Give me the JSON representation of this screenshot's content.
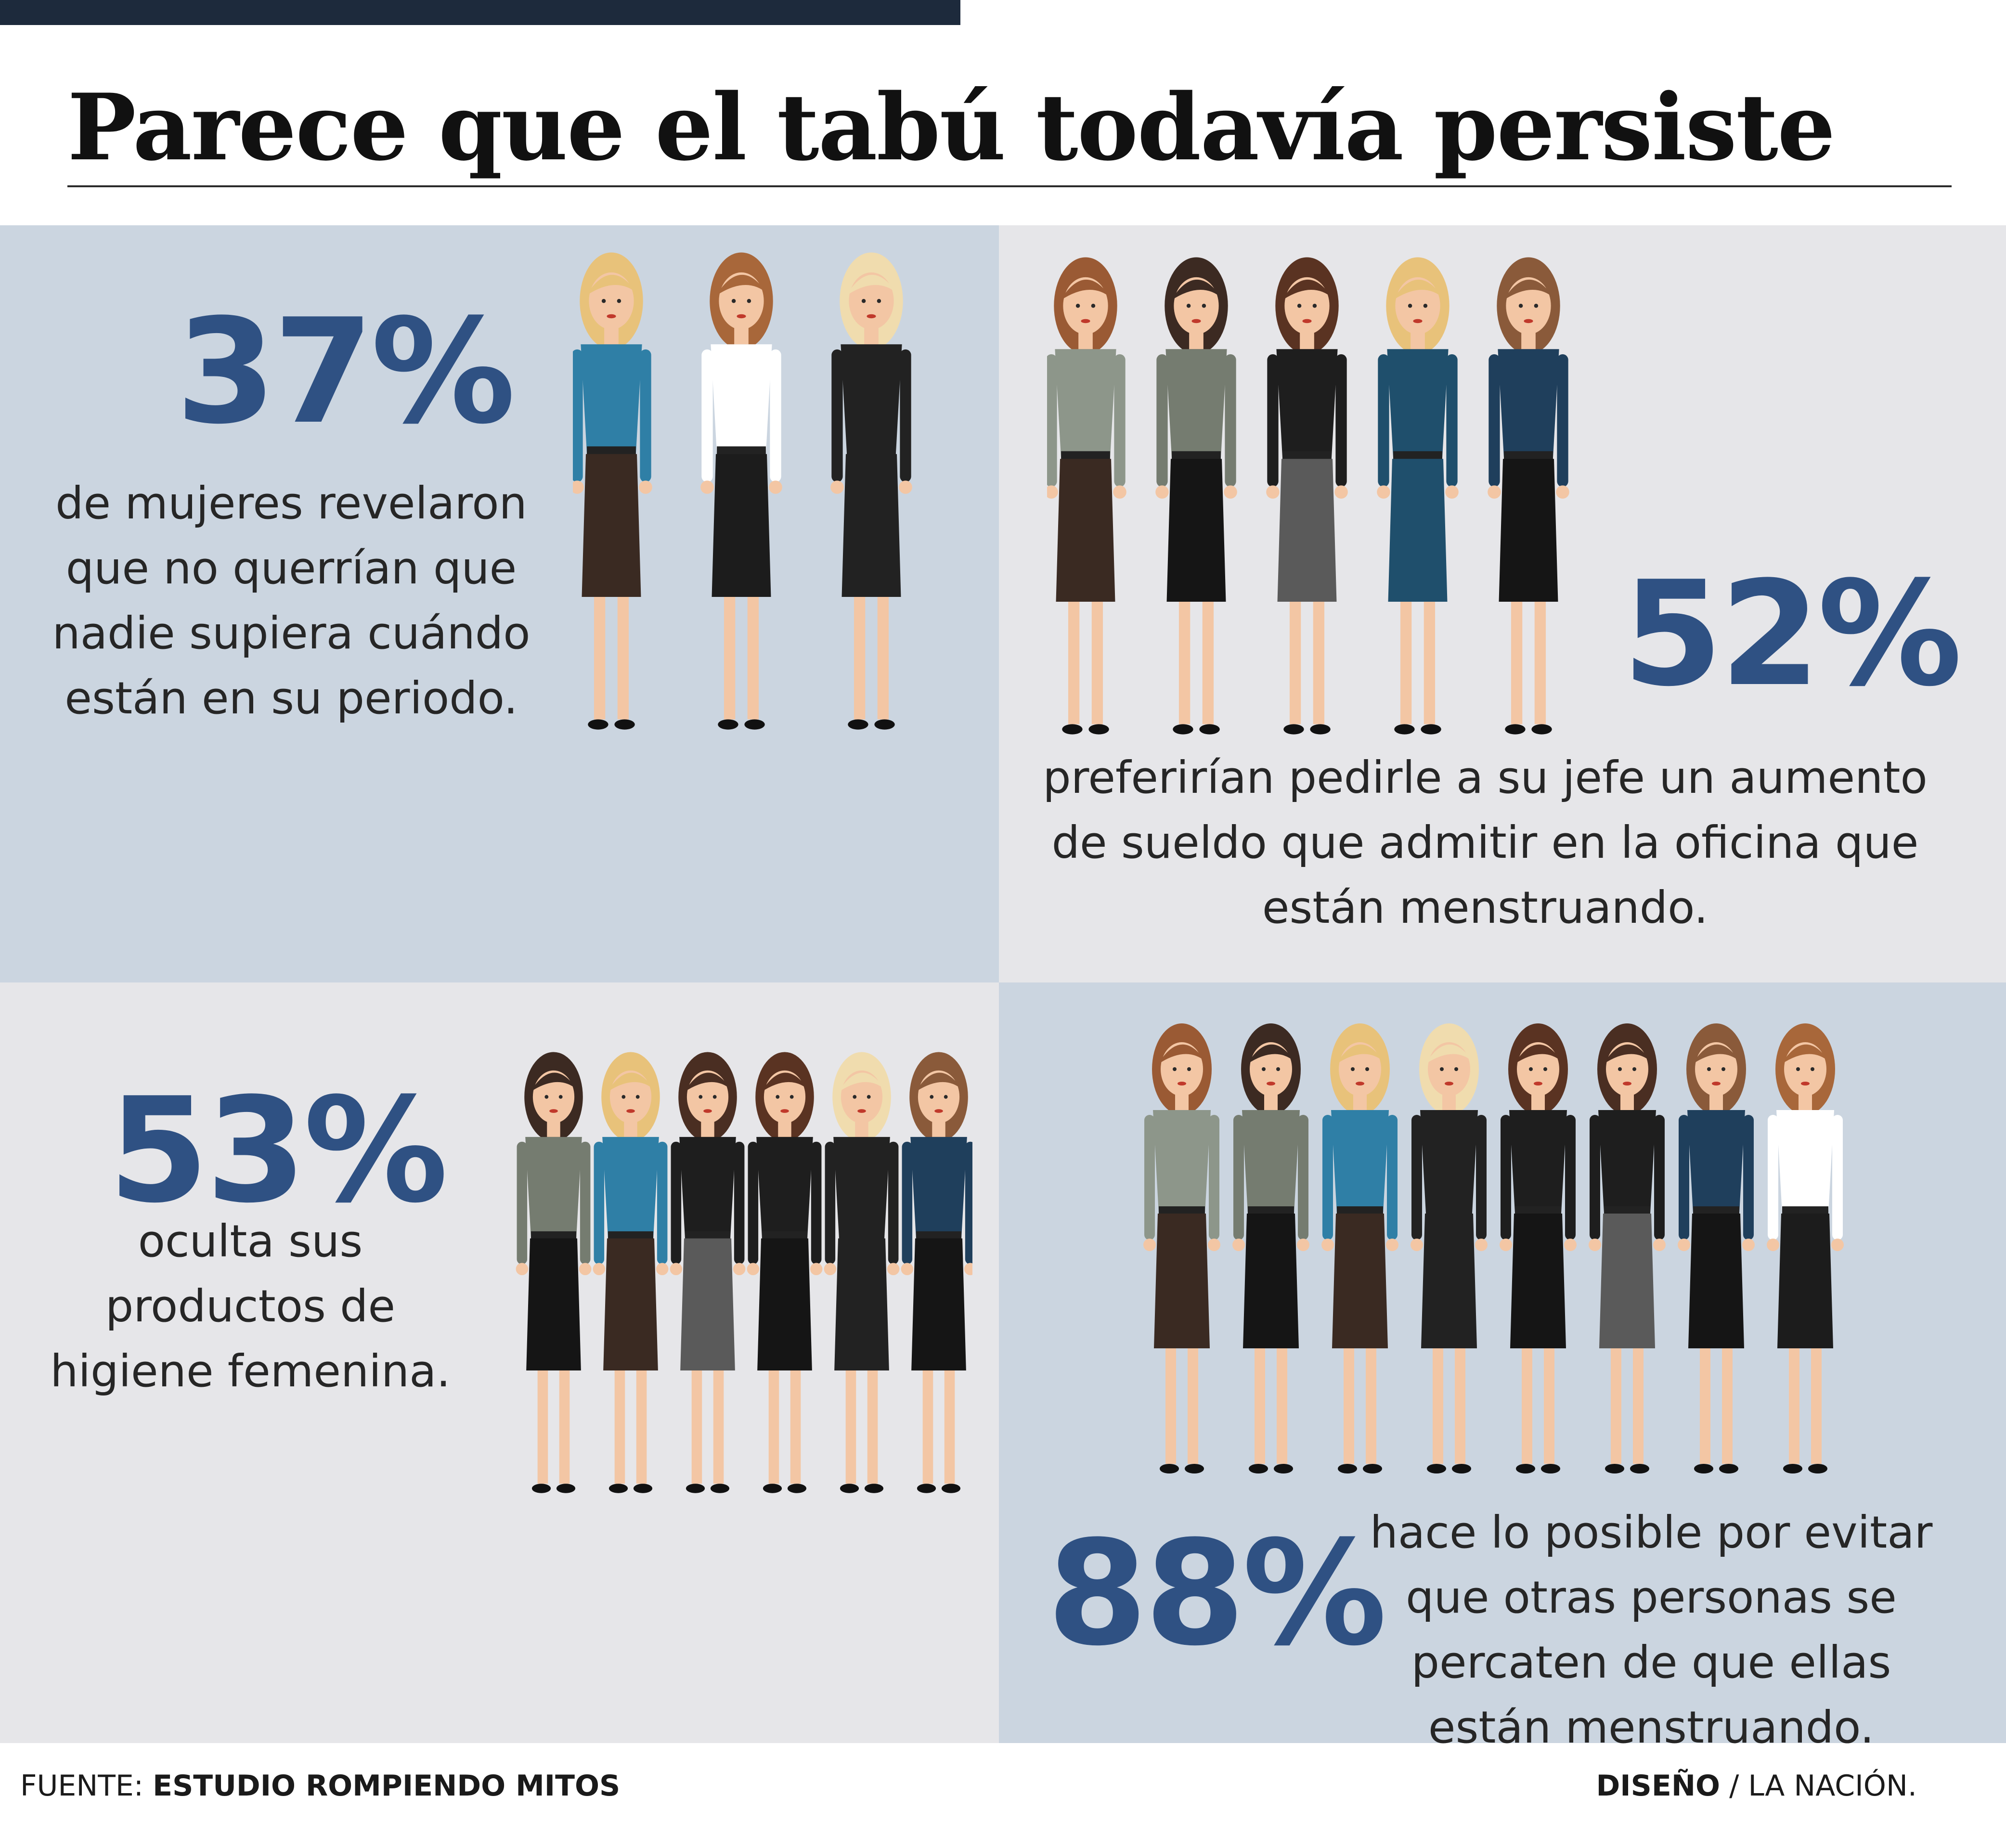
{
  "title": "Parece que el tabú todavía persiste",
  "stats": [
    {
      "value": "37%",
      "lines": [
        "de mujeres revelaron",
        "que no querrían que",
        "nadie supiera cuándo",
        "están en su periodo."
      ]
    },
    {
      "value": "52%",
      "lines": [
        "preferirían pedirle a su jefe un aumento",
        "de sueldo que admitir en la oficina que",
        "están menstruando."
      ]
    },
    {
      "value": "53%",
      "lines": [
        "oculta sus",
        "productos de",
        "higiene femenina."
      ]
    },
    {
      "value": "88%",
      "lines": [
        "hace lo posible por evitar",
        "que otras personas se",
        "percaten de que ellas",
        "están menstruando."
      ]
    }
  ],
  "footer": {
    "source_prefix": "FUENTE: ",
    "source": "ESTUDIO ROMPIENDO MITOS",
    "design_label": "DISEÑO",
    "design_sep": " / ",
    "design_credit": "LA NACIÓN."
  },
  "colors": {
    "accent": "#2f5183",
    "panel_blue": "#cbd5e0",
    "panel_grey": "#e6e6e9",
    "top_bar": "#1d2a3c"
  },
  "illustrations": {
    "group_a": [
      {
        "hair": "#e8c27a",
        "top": "#2f7fa6",
        "bottom": "#3a2a22",
        "skin": "#f3c6a4"
      },
      {
        "hair": "#a8673a",
        "top": "#ffffff",
        "bottom": "#1c1c1c",
        "skin": "#f3c6a4"
      },
      {
        "hair": "#f0dcae",
        "top": "#222222",
        "bottom": "#222222",
        "skin": "#f3c6a4"
      }
    ],
    "group_b": [
      {
        "hair": "#9a5a34",
        "top": "#8d968a",
        "bottom": "#3a2a22",
        "skin": "#f3c6a4"
      },
      {
        "hair": "#3c2a22",
        "top": "#757c70",
        "bottom": "#151515",
        "skin": "#f3c6a4"
      },
      {
        "hair": "#5a3322",
        "top": "#1e1e1e",
        "bottom": "#5a5a5a",
        "skin": "#f3c6a4"
      },
      {
        "hair": "#e8c27a",
        "top": "#1f4f6c",
        "bottom": "#1f4f6c",
        "skin": "#f3c6a4"
      },
      {
        "hair": "#8a5a3a",
        "top": "#1f3f5c",
        "bottom": "#151515",
        "skin": "#f3c6a4"
      }
    ],
    "group_c": [
      {
        "hair": "#3c2a22",
        "top": "#757c70",
        "bottom": "#151515",
        "skin": "#f3c6a4"
      },
      {
        "hair": "#e8c27a",
        "top": "#2f7fa6",
        "bottom": "#3a2a22",
        "skin": "#f3c6a4"
      },
      {
        "hair": "#4a2e22",
        "top": "#1e1e1e",
        "bottom": "#5a5a5a",
        "skin": "#f3c6a4"
      },
      {
        "hair": "#5a3322",
        "top": "#1e1e1e",
        "bottom": "#151515",
        "skin": "#f3c6a4"
      },
      {
        "hair": "#f0dcae",
        "top": "#222222",
        "bottom": "#222222",
        "skin": "#f3c6a4"
      },
      {
        "hair": "#8a5a3a",
        "top": "#1f3f5c",
        "bottom": "#151515",
        "skin": "#f3c6a4"
      }
    ],
    "group_d": [
      {
        "hair": "#9a5a34",
        "top": "#8d968a",
        "bottom": "#3a2a22",
        "skin": "#f3c6a4"
      },
      {
        "hair": "#3c2a22",
        "top": "#757c70",
        "bottom": "#151515",
        "skin": "#f3c6a4"
      },
      {
        "hair": "#e8c27a",
        "top": "#2f7fa6",
        "bottom": "#3a2a22",
        "skin": "#f3c6a4"
      },
      {
        "hair": "#f0dcae",
        "top": "#222222",
        "bottom": "#222222",
        "skin": "#f3c6a4"
      },
      {
        "hair": "#5a3322",
        "top": "#1e1e1e",
        "bottom": "#151515",
        "skin": "#f3c6a4"
      },
      {
        "hair": "#4a2e22",
        "top": "#1e1e1e",
        "bottom": "#5a5a5a",
        "skin": "#f3c6a4"
      },
      {
        "hair": "#8a5a3a",
        "top": "#1f3f5c",
        "bottom": "#151515",
        "skin": "#f3c6a4"
      },
      {
        "hair": "#a8673a",
        "top": "#ffffff",
        "bottom": "#1c1c1c",
        "skin": "#f3c6a4"
      }
    ]
  }
}
